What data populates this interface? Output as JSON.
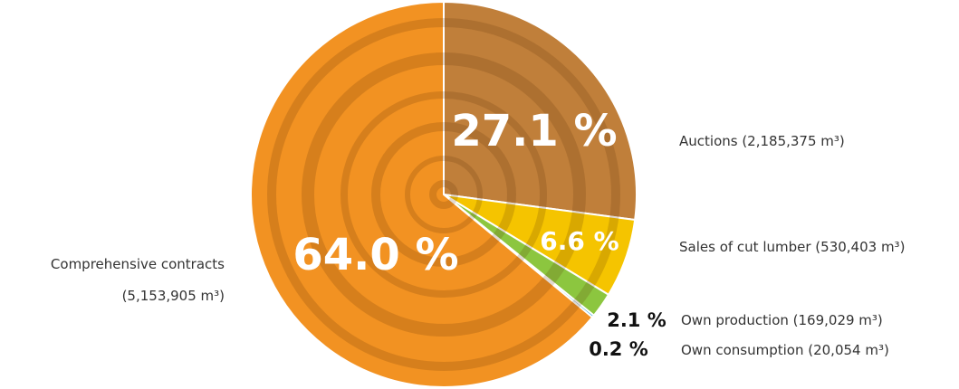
{
  "chart_data": {
    "type": "pie",
    "categories": [
      "Auctions (2,185,375 m³)",
      "Sales of cut lumber (530,403 m³)",
      "Own production (169,029 m³)",
      "Own consumption (20,054 m³)",
      "Comprehensive contracts (5,153,905 m³)"
    ],
    "values": [
      27.1,
      6.6,
      2.1,
      0.2,
      64.0
    ],
    "value_labels": [
      "27.1 %",
      "6.6 %",
      "2.1 %",
      "0.2 %",
      "64.0 %"
    ],
    "colors": [
      "#c07f3a",
      "#f5c400",
      "#8cc63f",
      "#1c9ad6",
      "#f29222"
    ]
  }
}
